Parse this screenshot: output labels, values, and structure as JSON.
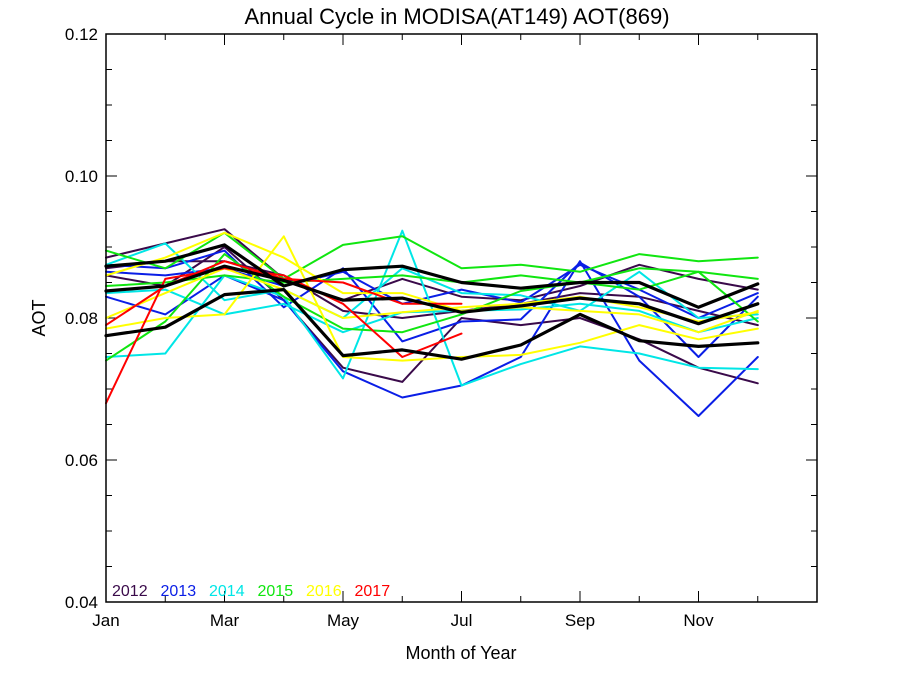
{
  "chart_data": {
    "type": "line",
    "title": "Annual Cycle in MODISA(AT149) AOT(869)",
    "xlabel": "Month of Year",
    "ylabel": "AOT",
    "xlim": [
      1,
      13
    ],
    "ylim": [
      0.04,
      0.12
    ],
    "x_ticks": [
      {
        "value": 1,
        "label": "Jan"
      },
      {
        "value": 3,
        "label": "Mar"
      },
      {
        "value": 5,
        "label": "May"
      },
      {
        "value": 7,
        "label": "Jul"
      },
      {
        "value": 9,
        "label": "Sep"
      },
      {
        "value": 11,
        "label": "Nov"
      }
    ],
    "y_ticks": [
      {
        "value": 0.04,
        "label": "0.04"
      },
      {
        "value": 0.06,
        "label": "0.06"
      },
      {
        "value": 0.08,
        "label": "0.08"
      },
      {
        "value": 0.1,
        "label": "0.10"
      },
      {
        "value": 0.12,
        "label": "0.12"
      }
    ],
    "x": [
      1,
      2,
      3,
      4,
      5,
      6,
      7,
      8,
      9,
      10,
      11,
      12
    ],
    "legend_position": "bottom-left",
    "legend": [
      {
        "label": "2012",
        "color": "#3a0a4a"
      },
      {
        "label": "2013",
        "color": "#0a1ee6"
      },
      {
        "label": "2014",
        "color": "#00e6e6"
      },
      {
        "label": "2015",
        "color": "#10e610"
      },
      {
        "label": "2016",
        "color": "#ffff00"
      },
      {
        "label": "2017",
        "color": "#ff0000"
      }
    ],
    "series": [
      {
        "year": "2012",
        "color": "#3a0a4a",
        "width": 2,
        "values": [
          0.0885,
          0.0905,
          0.0925,
          0.0855,
          0.0825,
          0.0855,
          0.083,
          0.0825,
          0.0845,
          0.0875,
          0.0855,
          0.084
        ]
      },
      {
        "year": "2012",
        "color": "#3a0a4a",
        "width": 2,
        "values": [
          0.086,
          0.0845,
          0.09,
          0.0825,
          0.073,
          0.071,
          0.08,
          0.079,
          0.08,
          0.077,
          0.073,
          0.0708
        ]
      },
      {
        "year": "2012",
        "color": "#3a0a4a",
        "width": 2,
        "values": [
          0.087,
          0.088,
          0.088,
          0.086,
          0.081,
          0.08,
          0.081,
          0.082,
          0.0835,
          0.083,
          0.081,
          0.079
        ]
      },
      {
        "year": "2013",
        "color": "#0a1ee6",
        "width": 2,
        "values": [
          0.083,
          0.0805,
          0.086,
          0.0825,
          0.0725,
          0.0688,
          0.0705,
          0.0745,
          0.088,
          0.074,
          0.0662,
          0.0745
        ]
      },
      {
        "year": "2013",
        "color": "#0a1ee6",
        "width": 2,
        "values": [
          0.0875,
          0.087,
          0.0895,
          0.0815,
          0.087,
          0.0767,
          0.0795,
          0.0798,
          0.0878,
          0.083,
          0.0745,
          0.083
        ]
      },
      {
        "year": "2013",
        "color": "#0a1ee6",
        "width": 2,
        "values": [
          0.0865,
          0.086,
          0.087,
          0.0845,
          0.0865,
          0.082,
          0.084,
          0.0822,
          0.0875,
          0.084,
          0.08,
          0.0835
        ]
      },
      {
        "year": "2014",
        "color": "#00e6e6",
        "width": 2,
        "values": [
          0.0745,
          0.075,
          0.086,
          0.083,
          0.0715,
          0.0923,
          0.0705,
          0.0735,
          0.076,
          0.075,
          0.073,
          0.0728
        ]
      },
      {
        "year": "2014",
        "color": "#00e6e6",
        "width": 2,
        "values": [
          0.0875,
          0.0905,
          0.0825,
          0.084,
          0.08,
          0.087,
          0.0835,
          0.0832,
          0.081,
          0.0865,
          0.08,
          0.0805
        ]
      },
      {
        "year": "2014",
        "color": "#00e6e6",
        "width": 2,
        "values": [
          0.0835,
          0.084,
          0.0805,
          0.082,
          0.078,
          0.0808,
          0.081,
          0.0812,
          0.082,
          0.081,
          0.078,
          0.08
        ]
      },
      {
        "year": "2015",
        "color": "#10e610",
        "width": 2,
        "values": [
          0.0895,
          0.087,
          0.092,
          0.0855,
          0.0903,
          0.0915,
          0.087,
          0.0875,
          0.0865,
          0.089,
          0.088,
          0.0885
        ]
      },
      {
        "year": "2015",
        "color": "#10e610",
        "width": 2,
        "values": [
          0.074,
          0.0795,
          0.089,
          0.083,
          0.0785,
          0.078,
          0.0805,
          0.0838,
          0.085,
          0.084,
          0.0865,
          0.0795
        ]
      },
      {
        "year": "2015",
        "color": "#10e610",
        "width": 2,
        "values": [
          0.0845,
          0.085,
          0.086,
          0.085,
          0.0855,
          0.086,
          0.085,
          0.086,
          0.085,
          0.087,
          0.0865,
          0.0855
        ]
      },
      {
        "year": "2016",
        "color": "#ffff00",
        "width": 2,
        "values": [
          0.0785,
          0.08,
          0.0805,
          0.0915,
          0.0745,
          0.074,
          0.0745,
          0.0748,
          0.0765,
          0.079,
          0.077,
          0.0785
        ]
      },
      {
        "year": "2016",
        "color": "#ffff00",
        "width": 2,
        "values": [
          0.086,
          0.0885,
          0.092,
          0.0885,
          0.0835,
          0.0835,
          0.081,
          0.0815,
          0.081,
          0.0805,
          0.078,
          0.081
        ]
      },
      {
        "year": "2016",
        "color": "#ffff00",
        "width": 2,
        "values": [
          0.08,
          0.0835,
          0.087,
          0.084,
          0.08,
          0.0808,
          0.0815,
          0.082,
          0.083,
          0.0815,
          0.0795,
          0.0808
        ]
      },
      {
        "year": "2017",
        "color": "#ff0000",
        "width": 2,
        "values": [
          0.068,
          0.0855,
          0.087,
          0.086,
          0.082,
          0.0745,
          0.0778,
          null,
          null,
          null,
          null,
          null
        ]
      },
      {
        "year": "2017",
        "color": "#ff0000",
        "width": 2,
        "values": [
          0.079,
          0.0845,
          0.088,
          0.0855,
          0.085,
          0.082,
          0.082,
          null,
          null,
          null,
          null,
          null
        ]
      },
      {
        "year": "mean",
        "color": "#000000",
        "width": 3.2,
        "values": [
          0.0775,
          0.0787,
          0.0833,
          0.084,
          0.0747,
          0.0755,
          0.0742,
          0.0762,
          0.0805,
          0.0768,
          0.076,
          0.0765
        ]
      },
      {
        "year": "mean",
        "color": "#000000",
        "width": 3.2,
        "values": [
          0.0838,
          0.0845,
          0.0873,
          0.0853,
          0.0825,
          0.0828,
          0.0808,
          0.0817,
          0.0828,
          0.082,
          0.0792,
          0.082
        ]
      },
      {
        "year": "mean",
        "color": "#000000",
        "width": 3.2,
        "values": [
          0.0873,
          0.088,
          0.0903,
          0.0845,
          0.0868,
          0.0873,
          0.085,
          0.0842,
          0.085,
          0.085,
          0.0815,
          0.0848
        ]
      }
    ]
  }
}
